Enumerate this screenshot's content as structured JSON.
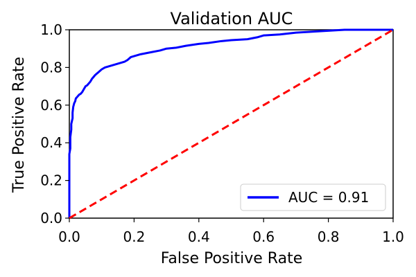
{
  "chart_data": {
    "type": "line",
    "title": "Validation AUC",
    "xlabel": "False Positive Rate",
    "ylabel": "True Positive Rate",
    "xlim": [
      0.0,
      1.0
    ],
    "ylim": [
      0.0,
      1.0
    ],
    "xticks": [
      "0.0",
      "0.2",
      "0.4",
      "0.6",
      "0.8",
      "1.0"
    ],
    "yticks": [
      "0.0",
      "0.2",
      "0.4",
      "0.6",
      "0.8",
      "1.0"
    ],
    "grid": false,
    "legend_position": "lower-right",
    "series": [
      {
        "name": "AUC = 0.91",
        "color": "#0000ff",
        "style": "solid",
        "x": [
          0.0,
          0.0,
          0.003,
          0.003,
          0.006,
          0.006,
          0.01,
          0.01,
          0.012,
          0.015,
          0.018,
          0.02,
          0.025,
          0.03,
          0.035,
          0.04,
          0.045,
          0.05,
          0.055,
          0.06,
          0.065,
          0.07,
          0.08,
          0.09,
          0.1,
          0.11,
          0.12,
          0.13,
          0.14,
          0.15,
          0.16,
          0.17,
          0.18,
          0.19,
          0.2,
          0.22,
          0.25,
          0.28,
          0.3,
          0.33,
          0.36,
          0.4,
          0.43,
          0.47,
          0.5,
          0.55,
          0.58,
          0.6,
          0.65,
          0.7,
          0.75,
          0.8,
          0.85,
          0.88,
          0.92,
          1.0
        ],
        "y": [
          0.0,
          0.34,
          0.37,
          0.43,
          0.47,
          0.5,
          0.53,
          0.56,
          0.59,
          0.61,
          0.62,
          0.635,
          0.645,
          0.655,
          0.66,
          0.67,
          0.685,
          0.7,
          0.705,
          0.715,
          0.725,
          0.74,
          0.76,
          0.775,
          0.79,
          0.8,
          0.805,
          0.81,
          0.815,
          0.82,
          0.825,
          0.83,
          0.84,
          0.855,
          0.86,
          0.87,
          0.88,
          0.89,
          0.9,
          0.905,
          0.915,
          0.925,
          0.93,
          0.94,
          0.945,
          0.95,
          0.96,
          0.97,
          0.975,
          0.985,
          0.99,
          0.995,
          1.0,
          1.0,
          1.0,
          1.0
        ]
      },
      {
        "color": "#ff0000",
        "style": "dashed",
        "x": [
          0.0,
          1.0
        ],
        "y": [
          0.0,
          1.0
        ]
      }
    ]
  }
}
